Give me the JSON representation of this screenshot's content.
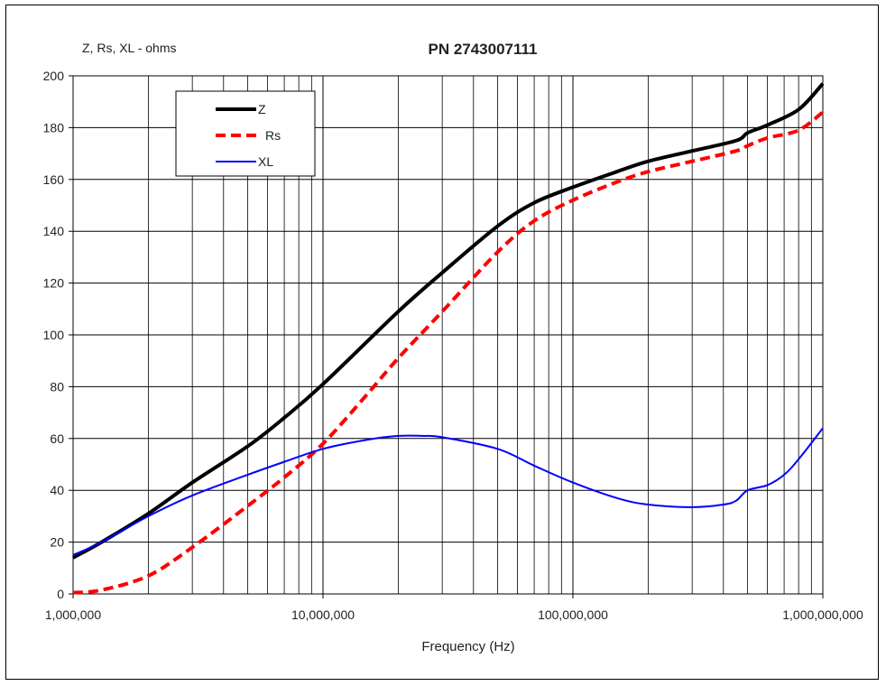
{
  "chart_data": {
    "type": "line",
    "title": "PN 2743007111",
    "ylabel": "Z, Rs, XL - ohms",
    "xlabel": "Frequency (Hz)",
    "xscale": "log",
    "xlim": [
      1000000,
      1000000000
    ],
    "ylim": [
      0,
      200
    ],
    "grid": true,
    "legend_position": "top-left",
    "x_tick_labels": [
      "1,000,000",
      "10,000,000",
      "100,000,000",
      "1,000,000,000"
    ],
    "y_tick_labels": [
      "0",
      "20",
      "40",
      "60",
      "80",
      "100",
      "120",
      "140",
      "160",
      "180",
      "200"
    ],
    "series": [
      {
        "name": "Z",
        "color": "#000000",
        "style": "solid-thick",
        "x": [
          1000000,
          1300000,
          2000000,
          3000000,
          5000000,
          7000000,
          10000000,
          20000000,
          30000000,
          50000000,
          70000000,
          100000000,
          150000000,
          200000000,
          300000000,
          450000000,
          500000000,
          600000000,
          800000000,
          1000000000
        ],
        "y": [
          14,
          20,
          31,
          43,
          57,
          68,
          81,
          109,
          124,
          142,
          151,
          157,
          163,
          167,
          171,
          175,
          178,
          181,
          187,
          197
        ]
      },
      {
        "name": "Rs",
        "color": "#ff0000",
        "style": "dashed-thick",
        "x": [
          1000000,
          1300000,
          2000000,
          3000000,
          5000000,
          7000000,
          10000000,
          15000000,
          20000000,
          30000000,
          50000000,
          70000000,
          100000000,
          150000000,
          200000000,
          300000000,
          450000000,
          500000000,
          600000000,
          800000000,
          1000000000
        ],
        "y": [
          0.5,
          1.5,
          7,
          18,
          34,
          45,
          58,
          77,
          91,
          109,
          132,
          144,
          152,
          159,
          163,
          167,
          171,
          173,
          176,
          179,
          186
        ]
      },
      {
        "name": "XL",
        "color": "#0000ff",
        "style": "solid-thin",
        "x": [
          1000000,
          1300000,
          2000000,
          3000000,
          5000000,
          7000000,
          10000000,
          15000000,
          20000000,
          25000000,
          30000000,
          50000000,
          70000000,
          100000000,
          150000000,
          200000000,
          300000000,
          400000000,
          450000000,
          500000000,
          600000000,
          700000000,
          800000000,
          1000000000
        ],
        "y": [
          15,
          20,
          30,
          38,
          46,
          51,
          56,
          59.5,
          61,
          61,
          60.5,
          56,
          49.5,
          43,
          37,
          34.5,
          33.5,
          34.5,
          36,
          40,
          42,
          46,
          52,
          64
        ]
      }
    ]
  }
}
